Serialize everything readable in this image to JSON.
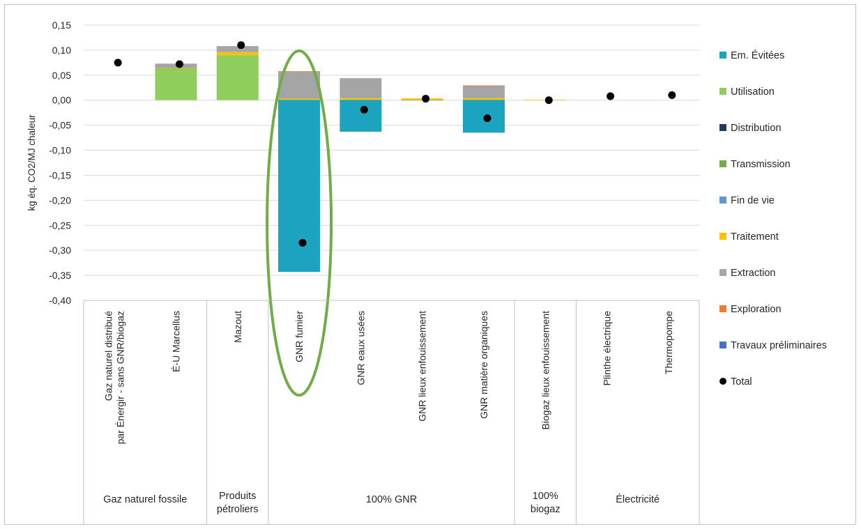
{
  "chart_data": {
    "type": "bar",
    "stacked": true,
    "ylabel": "kg éq. CO2/MJ chaleur",
    "ylim": [
      -0.4,
      0.15
    ],
    "ytick_step": 0.05,
    "yticks": [
      "0,15",
      "0,10",
      "0,05",
      "0,00",
      "-0,05",
      "-0,10",
      "-0,15",
      "-0,20",
      "-0,25",
      "-0,30",
      "-0,35",
      "-0,40"
    ],
    "grid": true,
    "legend_position": "right",
    "categories": [
      [
        "Gaz naturel distribué",
        "par Énergir - sans GNR/biogaz"
      ],
      [
        "É-U Marcellus"
      ],
      [
        "Mazout"
      ],
      [
        "GNR fumier"
      ],
      [
        "GNR eaux usées"
      ],
      [
        "GNR lieux enfouissement"
      ],
      [
        "GNR matière organiques"
      ],
      [
        "Biogaz lieux enfouissement"
      ],
      [
        "Plinthe électrique"
      ],
      [
        "Thermopompe"
      ]
    ],
    "groups": [
      {
        "label": [
          "Gaz naturel fossile"
        ],
        "span": [
          0,
          1
        ]
      },
      {
        "label": [
          "Produits",
          "pétroliers"
        ],
        "span": [
          2,
          2
        ]
      },
      {
        "label": [
          "100% GNR"
        ],
        "span": [
          3,
          6
        ]
      },
      {
        "label": [
          "100%",
          "biogaz"
        ],
        "span": [
          7,
          7
        ]
      },
      {
        "label": [
          "Électricité"
        ],
        "span": [
          8,
          9
        ]
      }
    ],
    "series": [
      {
        "name": "Em. Évitées",
        "color": "#1ba3bf",
        "values": [
          0,
          0,
          0,
          -0.343,
          -0.063,
          0,
          -0.065,
          0,
          0,
          0
        ]
      },
      {
        "name": "Utilisation",
        "color": "#8fce5c",
        "values": [
          0,
          0.062,
          0.09,
          0,
          0,
          0,
          0,
          0,
          0,
          0
        ]
      },
      {
        "name": "Distribution",
        "color": "#203864",
        "values": [
          0,
          0,
          0,
          0,
          0,
          0,
          0,
          0,
          0,
          0
        ]
      },
      {
        "name": "Transmission",
        "color": "#70ad47",
        "values": [
          0,
          0.001,
          0,
          0.001,
          0.001,
          0.0005,
          0.001,
          0,
          0,
          0
        ]
      },
      {
        "name": "Fin de vie",
        "color": "#5b9bd5",
        "values": [
          0,
          0,
          0,
          0,
          0,
          0,
          0,
          0,
          0,
          0
        ]
      },
      {
        "name": "Traitement",
        "color": "#ffc000",
        "values": [
          0,
          0.001,
          0.006,
          0.002,
          0.003,
          0.003,
          0.003,
          0.001,
          0,
          0
        ]
      },
      {
        "name": "Extraction",
        "color": "#a5a5a5",
        "values": [
          0,
          0.009,
          0.012,
          0.054,
          0.04,
          0,
          0.025,
          0,
          0,
          0
        ]
      },
      {
        "name": "Exploration",
        "color": "#ed7d31",
        "values": [
          0,
          0,
          0,
          0.001,
          0,
          0,
          0.0005,
          0,
          0,
          0
        ]
      },
      {
        "name": "Travaux préliminaires",
        "color": "#4472c4",
        "values": [
          0,
          0,
          0,
          0,
          0,
          0,
          0,
          0,
          0,
          0
        ]
      }
    ],
    "total": {
      "name": "Total",
      "color": "#000000",
      "values": [
        0.075,
        0.072,
        0.11,
        -0.285,
        -0.019,
        0.003,
        -0.036,
        0.0,
        0.008,
        0.01
      ]
    },
    "highlight": {
      "category_index": 3,
      "color": "#70ad47",
      "shape": "ellipse"
    }
  }
}
